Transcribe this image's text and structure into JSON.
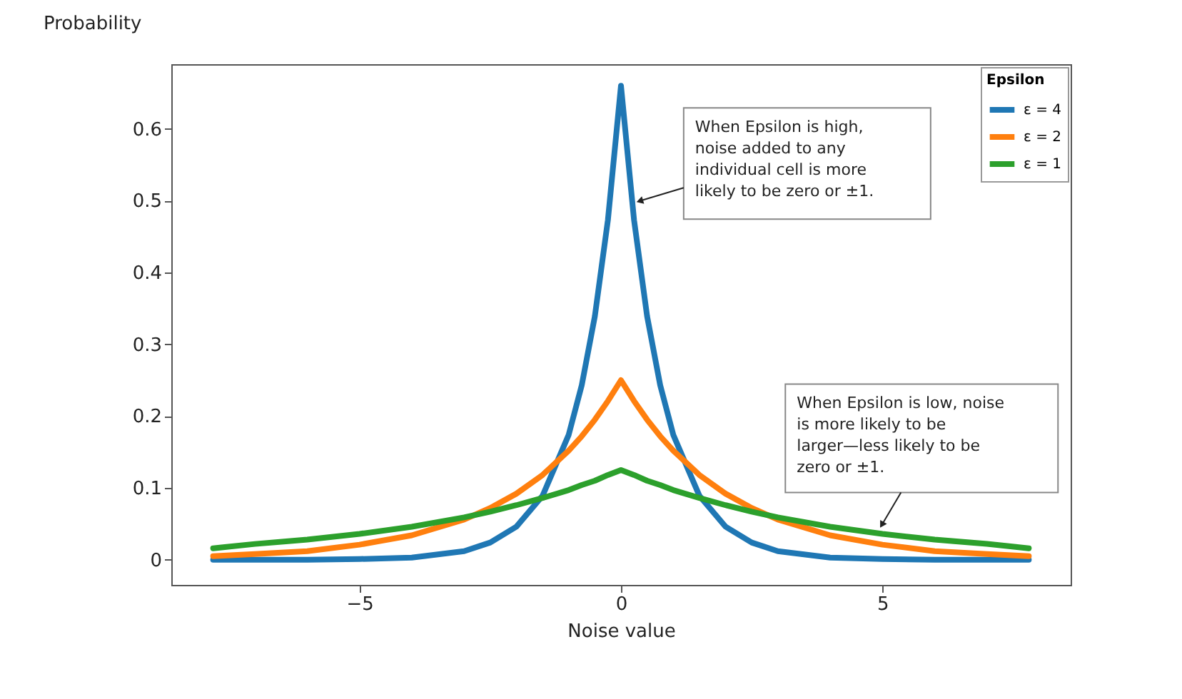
{
  "chart_data": {
    "type": "line",
    "xlabel": "Noise value",
    "ylabel": "Probability",
    "legend_title": "Epsilon",
    "x": [
      -7.8,
      -7,
      -6,
      -5,
      -4,
      -3,
      -2.5,
      -2,
      -1.5,
      -1,
      -0.75,
      -0.5,
      -0.25,
      0,
      0.25,
      0.5,
      0.75,
      1,
      1.5,
      2,
      2.5,
      3,
      4,
      5,
      6,
      7,
      7.8
    ],
    "series": [
      {
        "name": "ε = 4",
        "color": "#1f77b4",
        "values": [
          0,
          0,
          0,
          0.001,
          0.003,
          0.012,
          0.024,
          0.046,
          0.089,
          0.174,
          0.243,
          0.339,
          0.473,
          0.66,
          0.473,
          0.339,
          0.243,
          0.174,
          0.089,
          0.046,
          0.024,
          0.012,
          0.003,
          0.001,
          0,
          0,
          0
        ]
      },
      {
        "name": "ε = 2",
        "color": "#ff7f0e",
        "values": [
          0.005,
          0.008,
          0.012,
          0.021,
          0.034,
          0.056,
          0.072,
          0.092,
          0.118,
          0.152,
          0.172,
          0.195,
          0.221,
          0.25,
          0.221,
          0.195,
          0.172,
          0.152,
          0.118,
          0.092,
          0.072,
          0.056,
          0.034,
          0.021,
          0.012,
          0.008,
          0.005
        ]
      },
      {
        "name": "ε = 1",
        "color": "#2ca02c",
        "values": [
          0.016,
          0.022,
          0.028,
          0.036,
          0.046,
          0.059,
          0.067,
          0.076,
          0.086,
          0.097,
          0.104,
          0.11,
          0.118,
          0.125,
          0.118,
          0.11,
          0.104,
          0.097,
          0.086,
          0.076,
          0.067,
          0.059,
          0.046,
          0.036,
          0.028,
          0.022,
          0.016
        ]
      }
    ],
    "xlim": [
      -8.6,
      8.6
    ],
    "xticks": [
      -5,
      0,
      5
    ],
    "ylim": [
      -0.035,
      0.69
    ],
    "yticks": [
      {
        "value": 0,
        "label": "0"
      },
      0.1,
      0.2,
      0.3,
      0.4,
      0.5,
      0.6
    ],
    "grid": false,
    "legend": "top right",
    "marker": "none",
    "line_style": "solid",
    "annotations": [
      {
        "text": "When Epsilon is high, noise added to any individual cell is more likely to be zero or ±1.",
        "x": 0.38,
        "y": 0.5
      },
      {
        "text": "When Epsilon is low, noise is more likely to be larger—less likely to be zero or ±1.",
        "x": 5,
        "y": 0.05
      }
    ]
  }
}
